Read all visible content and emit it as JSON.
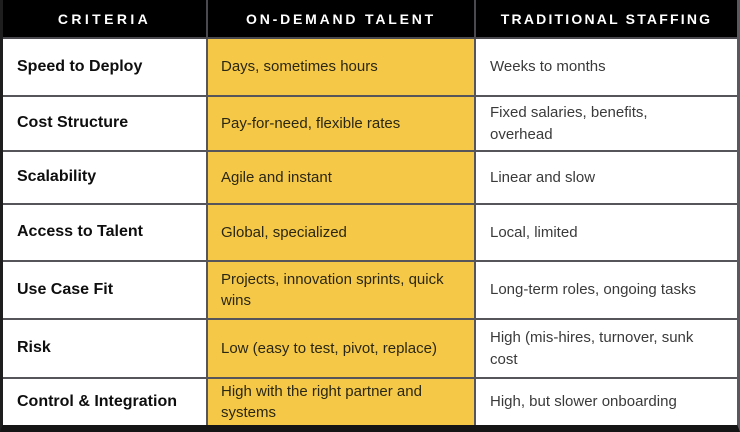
{
  "table": {
    "columns": [
      {
        "label": "CRITERIA"
      },
      {
        "label": "ON-DEMAND TALENT"
      },
      {
        "label": "TRADITIONAL STAFFING"
      }
    ],
    "rows": [
      {
        "criteria": "Speed to Deploy",
        "on_demand": "Days, sometimes hours",
        "traditional": "Weeks to months"
      },
      {
        "criteria": "Cost Structure",
        "on_demand": "Pay-for-need, flexible rates",
        "traditional": "Fixed salaries, benefits, overhead"
      },
      {
        "criteria": "Scalability",
        "on_demand": "Agile and instant",
        "traditional": "Linear and slow"
      },
      {
        "criteria": "Access to Talent",
        "on_demand": "Global, specialized",
        "traditional": "Local, limited"
      },
      {
        "criteria": "Use Case Fit",
        "on_demand": "Projects, innovation sprints, quick wins",
        "traditional": "Long-term roles, ongoing tasks"
      },
      {
        "criteria": "Risk",
        "on_demand": "Low (easy to test, pivot, replace)",
        "traditional": "High (mis-hires, turnover, sunk cost"
      },
      {
        "criteria": "Control & Integration",
        "on_demand": "High with the right partner and systems",
        "traditional": "High, but slower onboarding"
      }
    ],
    "colors": {
      "header_bg": "#000000",
      "header_text": "#FFFFFF",
      "highlight_column_bg": "#F5C847",
      "grid_line": "#55555A"
    }
  }
}
